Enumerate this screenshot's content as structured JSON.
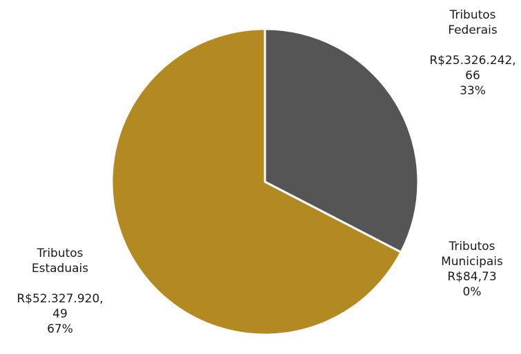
{
  "chart_data": {
    "type": "pie",
    "title": "",
    "slices": [
      {
        "name": "Tributos Federais",
        "name_lines": [
          "Tributos",
          "Federais"
        ],
        "value": 25326242.66,
        "value_lines": [
          "R$25.326.242,",
          "66"
        ],
        "percent_label": "33%",
        "color": "#555555"
      },
      {
        "name": "Tributos Municipais",
        "name_lines": [
          "Tributos",
          "Municipais"
        ],
        "value": 84.73,
        "value_lines": [
          "R$84,73"
        ],
        "percent_label": "0%",
        "color": "#8c6d1a"
      },
      {
        "name": "Tributos Estaduais",
        "name_lines": [
          "Tributos",
          "Estaduais"
        ],
        "value": 52327920.49,
        "value_lines": [
          "R$52.327.920,",
          "49"
        ],
        "percent_label": "67%",
        "color": "#b38a22"
      }
    ],
    "start_angle_deg": 0,
    "direction": "clockwise",
    "slice_border_color": "#ffffff",
    "legend": "none"
  }
}
